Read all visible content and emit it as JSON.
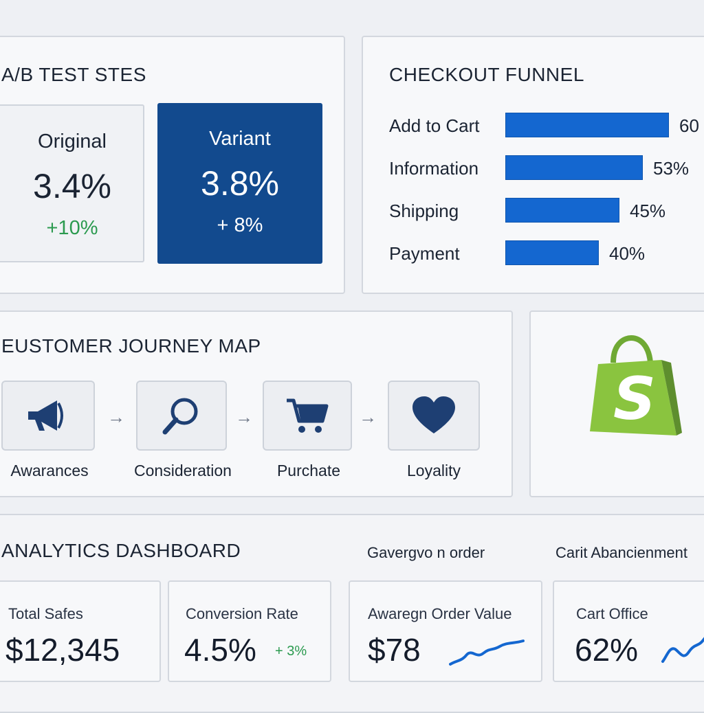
{
  "ab_test": {
    "title": "A/B TEST STES",
    "original": {
      "label": "Original",
      "value": "3.4%",
      "delta": "+10%"
    },
    "variant": {
      "label": "Variant",
      "value": "3.8%",
      "delta": "+ 8%"
    }
  },
  "funnel": {
    "title": "CHECKOUT FUNNEL",
    "steps": [
      {
        "label": "Add to Cart",
        "pct_text": "60",
        "value": 0.6
      },
      {
        "label": "Information",
        "pct_text": "53%",
        "value": 0.53
      },
      {
        "label": "Shipping",
        "pct_text": "45%",
        "value": 0.45
      },
      {
        "label": "Payment",
        "pct_text": "40%",
        "value": 0.4
      }
    ],
    "bar_color": "#1467d0"
  },
  "journey": {
    "title": "EUSTOMER JOURNEY MAP",
    "arrow": "→",
    "steps": [
      {
        "label": "Awarances",
        "icon": "megaphone-icon"
      },
      {
        "label": "Consideration",
        "icon": "magnifier-icon"
      },
      {
        "label": "Purchate",
        "icon": "cart-icon"
      },
      {
        "label": "Loyality",
        "icon": "heart-icon"
      }
    ]
  },
  "brand": {
    "logo": "shopify-bag-logo",
    "logo_letter": "S",
    "colors": {
      "green": "#8ac43f",
      "dark_green": "#5e8e2e"
    }
  },
  "analytics": {
    "title": "ANALYTICS DASHBOARD",
    "sub_headings": [
      "Gavergvo n order",
      "Carit Abancienment"
    ],
    "metrics": [
      {
        "label": "Total Safes",
        "value": "$12,345",
        "delta": ""
      },
      {
        "label": "Conversion Rate",
        "value": "4.5%",
        "delta": "+ 3%"
      },
      {
        "label": "Awaregn Order Value",
        "value": "$78",
        "delta": ""
      },
      {
        "label": "Cart Office",
        "value": "62%",
        "delta": ""
      }
    ]
  },
  "colors": {
    "accent": "#124a8e",
    "positive": "#2b9a4f",
    "sparkline": "#1467d0"
  }
}
